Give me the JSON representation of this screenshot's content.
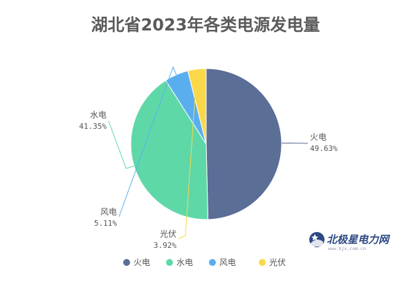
{
  "chart_data": {
    "type": "pie",
    "title": "湖北省2023年各类电源发电量",
    "slices": [
      {
        "name": "火电",
        "value": 49.63,
        "label": "49.63%",
        "color": "#5a6e96"
      },
      {
        "name": "水电",
        "value": 41.35,
        "label": "41.35%",
        "color": "#5fd8a8"
      },
      {
        "name": "风电",
        "value": 5.11,
        "label": "5.11%",
        "color": "#5aaeee"
      },
      {
        "name": "光伏",
        "value": 3.92,
        "label": "3.92%",
        "color": "#fad84a"
      }
    ],
    "legend_position": "bottom",
    "start_angle": "top",
    "direction": "clockwise"
  },
  "watermark": {
    "name": "北极星电力网",
    "url": "www.bjx.com.cn"
  }
}
